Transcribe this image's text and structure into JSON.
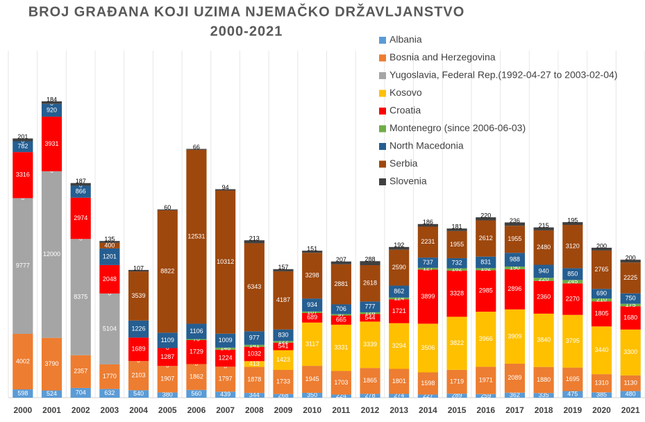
{
  "chart_data": {
    "type": "stacked-bar",
    "title": "BROJ GRAĐANA KOJI UZIMA NJEMAČKO DRŽAVLJANSTVO",
    "subtitle": "2000-2021",
    "categories": [
      "2000",
      "2001",
      "2002",
      "2003",
      "2004",
      "2005",
      "2006",
      "2007",
      "2008",
      "2009",
      "2010",
      "2011",
      "2012",
      "2013",
      "2014",
      "2015",
      "2016",
      "2017",
      "2018",
      "2019",
      "2020",
      "2021"
    ],
    "ylim": [
      0,
      25000
    ],
    "grid": true,
    "legend": "top-right",
    "series": [
      {
        "name": "Albania",
        "color": "#5b9bd5",
        "values": [
          598,
          524,
          704,
          632,
          540,
          380,
          560,
          439,
          344,
          268,
          350,
          224,
          278,
          274,
          227,
          289,
          259,
          362,
          335,
          475,
          385,
          480
        ]
      },
      {
        "name": "Bosnia and Herzegovina",
        "color": "#ed7d31",
        "values": [
          4002,
          3790,
          2357,
          1770,
          2103,
          1907,
          1862,
          1797,
          1878,
          1733,
          1945,
          1703,
          1865,
          1801,
          1598,
          1719,
          1971,
          2089,
          1880,
          1695,
          1310,
          1130
        ]
      },
      {
        "name": "Yugoslavia, Federal Rep.(1992-04-27 to 2003-02-04)",
        "color": "#a5a5a5",
        "values": [
          9777,
          12000,
          8375,
          5104,
          null,
          null,
          null,
          null,
          null,
          null,
          null,
          null,
          null,
          null,
          null,
          null,
          null,
          null,
          null,
          null,
          null,
          null
        ]
      },
      {
        "name": "Kosovo",
        "color": "#ffc000",
        "values": [
          0,
          0,
          0,
          0,
          0,
          0,
          0,
          0,
          413,
          1423,
          3117,
          3331,
          3339,
          3294,
          3506,
          3822,
          3966,
          3909,
          3840,
          3795,
          3440,
          3300
        ]
      },
      {
        "name": "Croatia",
        "color": "#ff0000",
        "values": [
          3316,
          3931,
          2974,
          2048,
          1689,
          1287,
          1729,
          1224,
          1032,
          541,
          689,
          665,
          544,
          1721,
          3899,
          3328,
          2985,
          2896,
          2360,
          2270,
          1805,
          1680
        ]
      },
      {
        "name": "Montenegro (since 2006-06-03)",
        "color": "#70ad47",
        "values": [
          null,
          null,
          null,
          null,
          null,
          0,
          70,
          146,
          141,
          122,
          107,
          97,
          128,
          124,
          127,
          162,
          152,
          190,
          220,
          245,
          210,
          175
        ]
      },
      {
        "name": "North Macedonia",
        "color": "#255e91",
        "values": [
          782,
          920,
          866,
          1201,
          1226,
          1109,
          1106,
          1009,
          977,
          830,
          934,
          706,
          777,
          862,
          737,
          732,
          831,
          988,
          940,
          850,
          690,
          750
        ]
      },
      {
        "name": "Serbia",
        "color": "#9e480e",
        "values": [
          0,
          0,
          0,
          400,
          3539,
          8822,
          12531,
          10312,
          6343,
          4187,
          3298,
          2881,
          2618,
          2590,
          2231,
          1955,
          2612,
          1955,
          2480,
          3120,
          2765,
          2225
        ]
      },
      {
        "name": "Slovenia",
        "color": "#404040",
        "values": [
          201,
          184,
          187,
          135,
          107,
          60,
          66,
          94,
          213,
          157,
          151,
          207,
          288,
          192,
          186,
          181,
          220,
          236,
          215,
          195,
          200,
          200
        ]
      }
    ]
  }
}
